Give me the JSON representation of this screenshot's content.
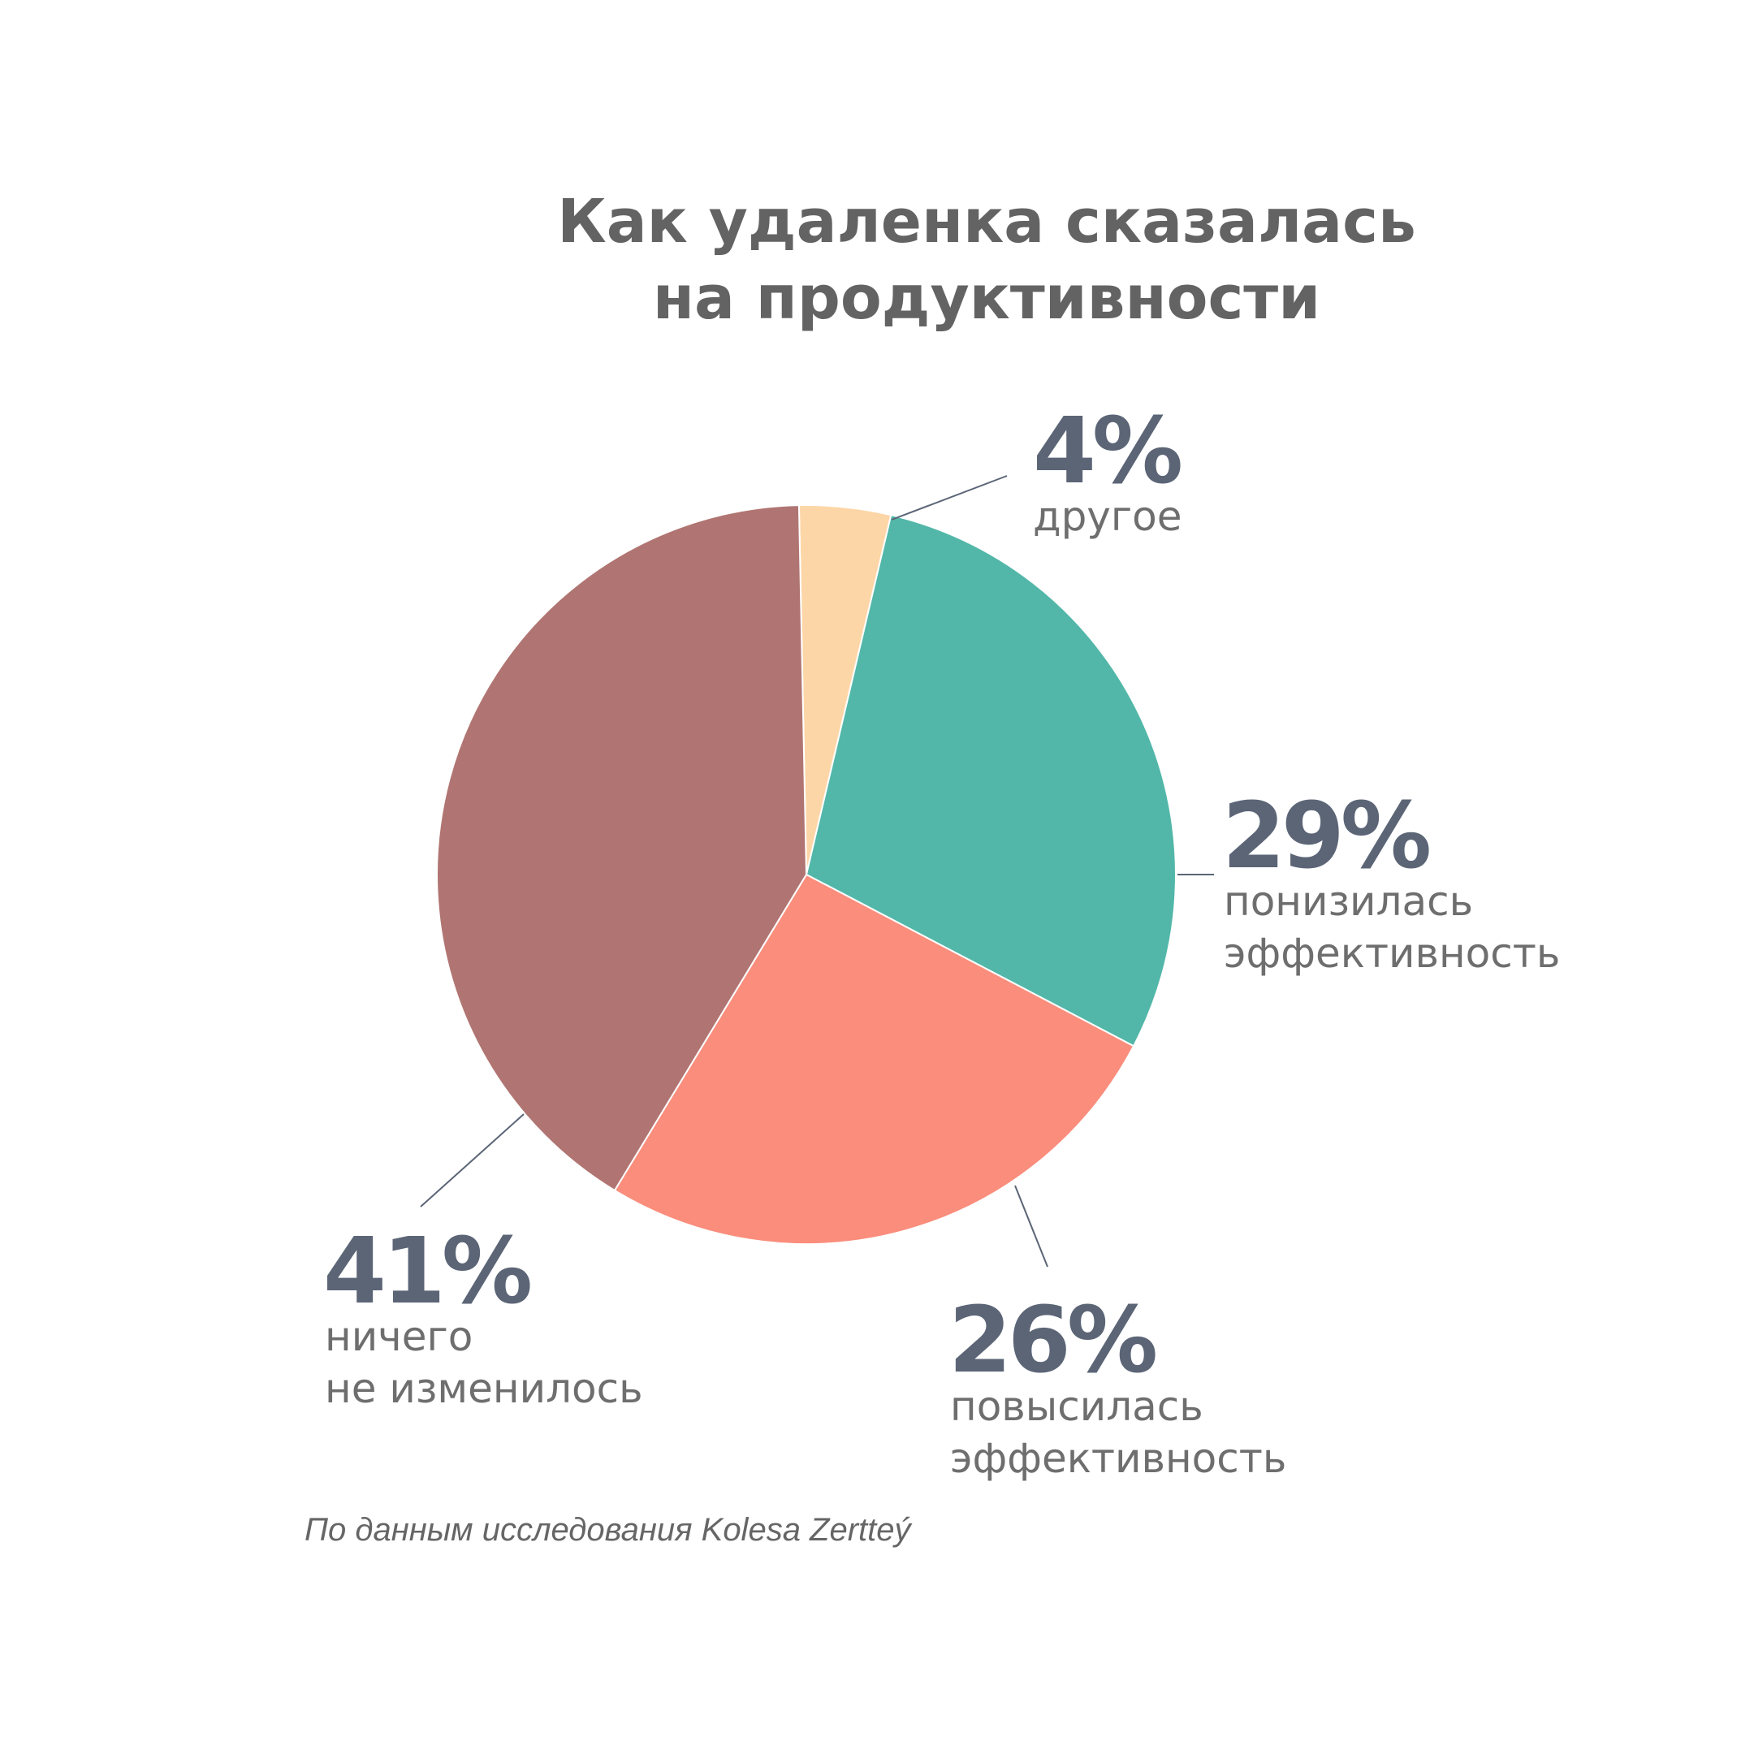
{
  "chart_data": {
    "type": "pie",
    "title_lines": [
      "Как удаленка сказалась",
      "на продуктивности"
    ],
    "slices": [
      {
        "value": 4,
        "label": "4%",
        "text_lines": [
          "другое"
        ],
        "color": "#fdd6a7"
      },
      {
        "value": 29,
        "label": "29%",
        "text_lines": [
          "понизилась",
          "эффективность"
        ],
        "color": "#52b7a8"
      },
      {
        "value": 26,
        "label": "26%",
        "text_lines": [
          "повысилась",
          "эффективность"
        ],
        "color": "#fa8d7c"
      },
      {
        "value": 41,
        "label": "41%",
        "text_lines": [
          "ничего",
          "не изменилось"
        ],
        "color": "#b07572"
      }
    ],
    "start": "top",
    "direction": "clockwise"
  },
  "source": "По данным исследования Kolesa Zertteý"
}
